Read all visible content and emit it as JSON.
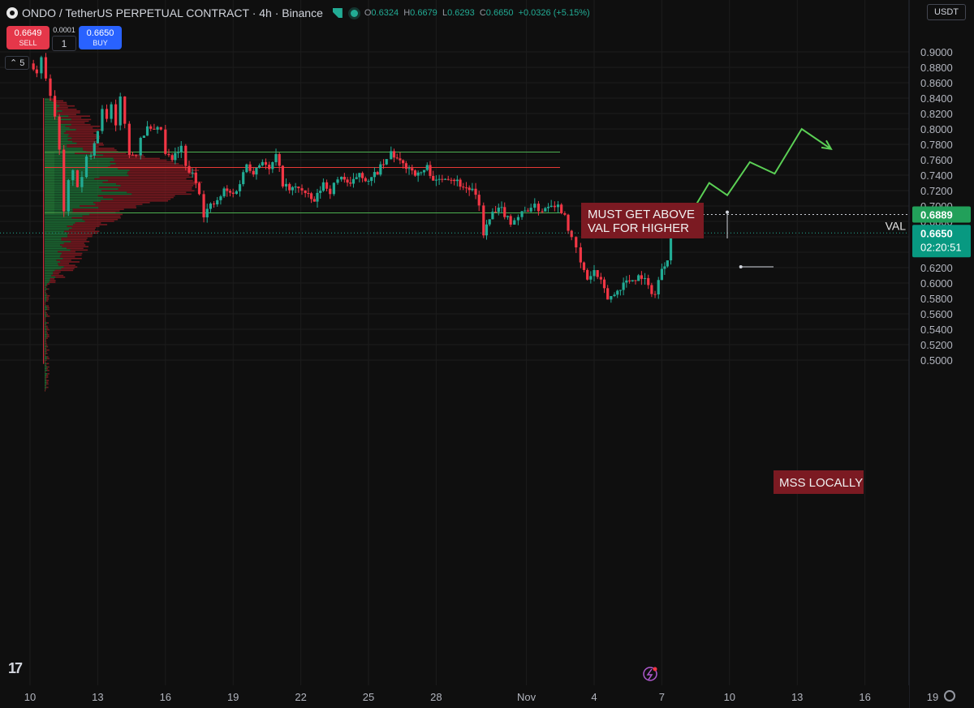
{
  "header": {
    "title": "ONDO / TetherUS PERPETUAL CONTRACT · 4h · Binance",
    "ohlc": [
      {
        "k": "O",
        "v": "0.6324"
      },
      {
        "k": "H",
        "v": "0.6679"
      },
      {
        "k": "L",
        "v": "0.6293"
      },
      {
        "k": "C",
        "v": "0.6650"
      }
    ],
    "change": "+0.0326 (+5.15%)"
  },
  "trade": {
    "sell_price": "0.6649",
    "sell_label": "SELL",
    "buy_price": "0.6650",
    "buy_label": "BUY",
    "step": "0.0001",
    "qty": "1"
  },
  "indicator_badge": "5",
  "currency": "USDT",
  "colors": {
    "up": "#22ab94",
    "down": "#f23645",
    "bg": "#0f0f0f",
    "grid": "#1c1c1c",
    "vp_up": "#1e7a3a",
    "vp_down": "#8b1a22",
    "level_green": "#4caf50",
    "level_red": "#e53935",
    "path_green": "#5bd055",
    "label_bg": "#7b1a22"
  },
  "chart_data": {
    "type": "candlestick",
    "ylim": [
      0.49,
      0.915
    ],
    "y_ticks": [
      "0.9000",
      "0.8800",
      "0.8600",
      "0.8400",
      "0.8200",
      "0.8000",
      "0.7800",
      "0.7600",
      "0.7400",
      "0.7200",
      "0.7000",
      "0.6800",
      "0.6600",
      "0.6400",
      "0.6200",
      "0.6000",
      "0.5800",
      "0.5600",
      "0.5400",
      "0.5200",
      "0.5000"
    ],
    "x_ticks": [
      {
        "label": "10",
        "day": 0
      },
      {
        "label": "13",
        "day": 3
      },
      {
        "label": "16",
        "day": 6
      },
      {
        "label": "19",
        "day": 9
      },
      {
        "label": "22",
        "day": 12
      },
      {
        "label": "25",
        "day": 15
      },
      {
        "label": "28",
        "day": 18
      },
      {
        "label": "Nov",
        "day": 22
      },
      {
        "label": "4",
        "day": 25
      },
      {
        "label": "7",
        "day": 28
      },
      {
        "label": "10",
        "day": 31
      },
      {
        "label": "13",
        "day": 34
      },
      {
        "label": "16",
        "day": 37
      },
      {
        "label": "19",
        "day": 40
      }
    ],
    "levels": [
      {
        "price": 0.77,
        "color": "green"
      },
      {
        "price": 0.75,
        "color": "red"
      },
      {
        "price": 0.691,
        "color": "green"
      }
    ],
    "val_level": {
      "price": "0.6889",
      "label": "VAL"
    },
    "last_price": {
      "price": "0.6650",
      "countdown": "02:20:51"
    },
    "annotations": [
      {
        "text": "MUST GET ABOVE VAL FOR HIGHER",
        "line1": "MUST GET ABOVE",
        "line2": "VAL FOR HIGHER"
      },
      {
        "text": "MSS LOCALLY"
      }
    ],
    "projected_path": [
      {
        "day": 29.4,
        "price": 0.696
      },
      {
        "day": 30.1,
        "price": 0.73
      },
      {
        "day": 30.9,
        "price": 0.714
      },
      {
        "day": 31.9,
        "price": 0.757
      },
      {
        "day": 33.0,
        "price": 0.742
      },
      {
        "day": 34.2,
        "price": 0.8
      },
      {
        "day": 35.5,
        "price": 0.774
      }
    ],
    "anchors": {
      "val_label": [
        30.9,
        0.692
      ],
      "mss_label": [
        31.5,
        0.621
      ]
    },
    "segments": [
      [
        0.0,
        0.885
      ],
      [
        0.3,
        0.875
      ],
      [
        0.5,
        0.89
      ],
      [
        0.7,
        0.87
      ],
      [
        0.9,
        0.84
      ],
      [
        1.1,
        0.82
      ],
      [
        1.3,
        0.77
      ],
      [
        1.5,
        0.69
      ],
      [
        1.7,
        0.73
      ],
      [
        1.9,
        0.75
      ],
      [
        2.1,
        0.72
      ],
      [
        2.3,
        0.74
      ],
      [
        2.5,
        0.76
      ],
      [
        2.7,
        0.77
      ],
      [
        3.0,
        0.8
      ],
      [
        3.2,
        0.83
      ],
      [
        3.4,
        0.81
      ],
      [
        3.6,
        0.83
      ],
      [
        3.8,
        0.8
      ],
      [
        4.0,
        0.84
      ],
      [
        4.2,
        0.81
      ],
      [
        4.4,
        0.765
      ],
      [
        4.7,
        0.77
      ],
      [
        4.9,
        0.79
      ],
      [
        5.2,
        0.8
      ],
      [
        5.5,
        0.795
      ],
      [
        5.8,
        0.8
      ],
      [
        6.0,
        0.765
      ],
      [
        6.3,
        0.76
      ],
      [
        6.7,
        0.775
      ],
      [
        6.9,
        0.75
      ],
      [
        7.2,
        0.74
      ],
      [
        7.5,
        0.72
      ],
      [
        7.7,
        0.69
      ],
      [
        8.0,
        0.7
      ],
      [
        8.3,
        0.705
      ],
      [
        8.6,
        0.72
      ],
      [
        9.0,
        0.715
      ],
      [
        9.3,
        0.73
      ],
      [
        9.6,
        0.755
      ],
      [
        9.9,
        0.745
      ],
      [
        10.3,
        0.76
      ],
      [
        10.6,
        0.745
      ],
      [
        10.9,
        0.765
      ],
      [
        11.2,
        0.73
      ],
      [
        11.5,
        0.72
      ],
      [
        11.9,
        0.725
      ],
      [
        12.2,
        0.715
      ],
      [
        12.6,
        0.705
      ],
      [
        13.0,
        0.73
      ],
      [
        13.3,
        0.72
      ],
      [
        13.8,
        0.74
      ],
      [
        14.2,
        0.725
      ],
      [
        14.6,
        0.745
      ],
      [
        15.0,
        0.73
      ],
      [
        15.4,
        0.745
      ],
      [
        15.8,
        0.758
      ],
      [
        16.0,
        0.77
      ],
      [
        16.4,
        0.755
      ],
      [
        16.8,
        0.75
      ],
      [
        17.2,
        0.74
      ],
      [
        17.6,
        0.75
      ],
      [
        18.0,
        0.73
      ],
      [
        18.4,
        0.74
      ],
      [
        18.8,
        0.735
      ],
      [
        19.2,
        0.725
      ],
      [
        19.6,
        0.72
      ],
      [
        19.9,
        0.7
      ],
      [
        20.1,
        0.665
      ],
      [
        20.5,
        0.69
      ],
      [
        20.9,
        0.695
      ],
      [
        21.3,
        0.68
      ],
      [
        21.8,
        0.69
      ],
      [
        22.2,
        0.7
      ],
      [
        22.7,
        0.695
      ],
      [
        23.1,
        0.705
      ],
      [
        23.4,
        0.7
      ],
      [
        23.7,
        0.69
      ],
      [
        24.0,
        0.655
      ],
      [
        24.2,
        0.645
      ],
      [
        24.4,
        0.625
      ],
      [
        24.7,
        0.605
      ],
      [
        25.0,
        0.615
      ],
      [
        25.3,
        0.6
      ],
      [
        25.6,
        0.58
      ],
      [
        25.9,
        0.585
      ],
      [
        26.3,
        0.6
      ],
      [
        26.7,
        0.605
      ],
      [
        27.1,
        0.61
      ],
      [
        27.4,
        0.595
      ],
      [
        27.7,
        0.585
      ],
      [
        28.0,
        0.62
      ],
      [
        28.25,
        0.6324
      ],
      [
        28.4,
        0.665
      ]
    ]
  }
}
